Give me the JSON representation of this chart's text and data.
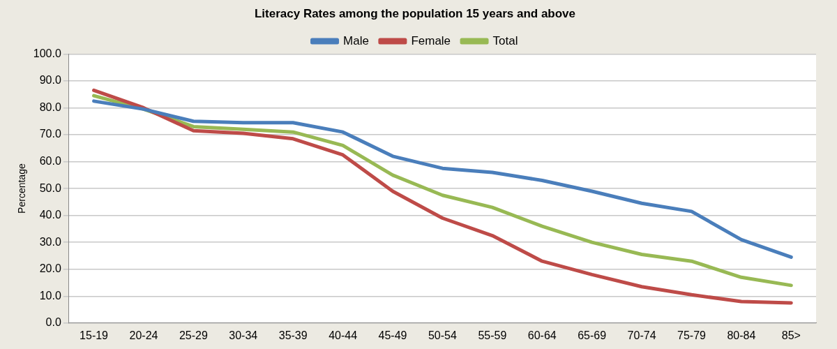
{
  "chart_data": {
    "type": "line",
    "title": "Literacy Rates among the population 15 years and above",
    "ylabel": "Percentage",
    "categories": [
      "15-19",
      "20-24",
      "25-29",
      "30-34",
      "35-39",
      "40-44",
      "45-49",
      "50-54",
      "55-59",
      "60-64",
      "65-69",
      "70-74",
      "75-79",
      "80-84",
      "85>"
    ],
    "series": [
      {
        "name": "Male",
        "color": "#4a7ebb",
        "values": [
          82.5,
          79.5,
          75,
          74.5,
          74.5,
          71,
          62,
          57.5,
          56,
          53,
          49,
          44.5,
          41.5,
          31,
          24.5
        ]
      },
      {
        "name": "Female",
        "color": "#be4b48",
        "values": [
          86.5,
          80,
          71.5,
          70.5,
          68.5,
          62.5,
          49,
          39,
          32.5,
          23,
          18,
          13.5,
          10.5,
          8,
          7.5
        ]
      },
      {
        "name": "Total",
        "color": "#98b954",
        "values": [
          84.5,
          79.5,
          73,
          72,
          71,
          66,
          55,
          47.5,
          43,
          36,
          30,
          25.5,
          23,
          17,
          14
        ]
      }
    ],
    "ylim": [
      0,
      100
    ],
    "yticks": [
      {
        "value": 0,
        "label": "0.0"
      },
      {
        "value": 10,
        "label": "10.0"
      },
      {
        "value": 20,
        "label": "20.0"
      },
      {
        "value": 30,
        "label": "30.0"
      },
      {
        "value": 40,
        "label": "40.0"
      },
      {
        "value": 50,
        "label": "50.0"
      },
      {
        "value": 60,
        "label": "60.0"
      },
      {
        "value": 70,
        "label": "70.0"
      },
      {
        "value": 80,
        "label": "80.0"
      },
      {
        "value": 90,
        "label": "90.0"
      },
      {
        "value": 100,
        "label": "100.0"
      }
    ],
    "grid": "y",
    "legend": "top",
    "marker": "none",
    "line_style": "solid"
  }
}
